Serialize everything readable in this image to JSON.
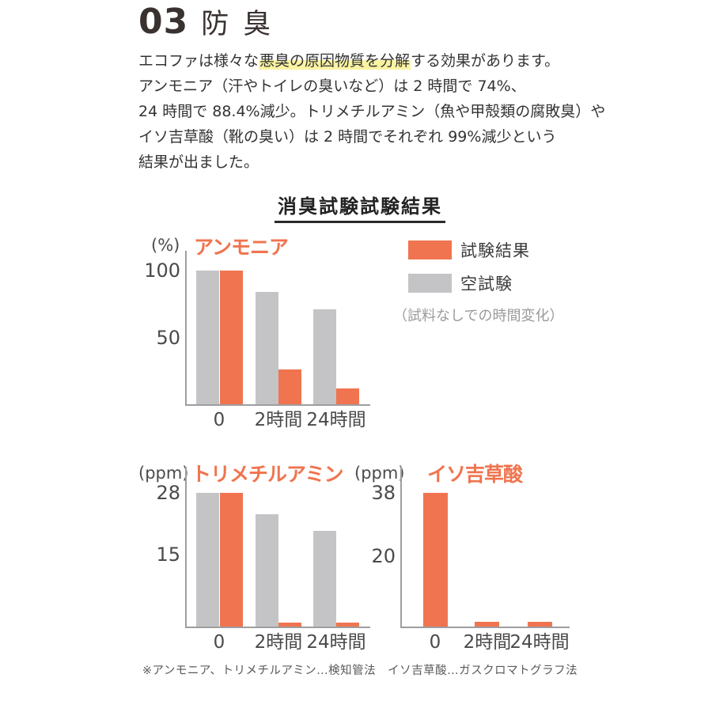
{
  "header": {
    "number": "03",
    "title": "防臭"
  },
  "intro": {
    "line1_pre": "エコファは様々な",
    "line1_highlight": "悪臭の原因物質を分解",
    "line1_post": "する効果があります。",
    "line2": "アンモニア（汗やトイレの臭いなど）は 2 時間で 74%、",
    "line3": "24 時間で 88.4%減少。トリメチルアミン（魚や甲殻類の腐敗臭）や",
    "line4": "イソ吉草酸（靴の臭い）は 2 時間でそれぞれ 99%減少という",
    "line5": "結果が出ました。"
  },
  "section": {
    "title": "消臭試験試験結果"
  },
  "legend": {
    "result_label": "試験結果",
    "blank_label": "空試験",
    "note": "（試料なしでの時間変化）"
  },
  "footnote": "※アンモニア、トリメチルアミン…検知管法　イソ吉草酸…ガスクロマトグラフ法",
  "colors": {
    "accent": "#f0744f",
    "bar_gray": "#c4c4c6",
    "highlight": "#faf3a2",
    "heading": "#3a3230"
  },
  "chart_data": [
    {
      "type": "bar",
      "title": "アンモニア",
      "unit": "(%)",
      "categories": [
        "0",
        "2時間",
        "24時間"
      ],
      "y_ticks": [
        100,
        50
      ],
      "ylim": [
        0,
        115
      ],
      "grid": false,
      "legend_position": "right",
      "series": [
        {
          "key": "blank",
          "name": "空試験",
          "color": "#c4c4c6",
          "values": [
            100,
            84,
            71
          ]
        },
        {
          "key": "result",
          "name": "試験結果",
          "color": "#f0744f",
          "values": [
            100,
            26,
            11.6
          ]
        }
      ]
    },
    {
      "type": "bar",
      "title": "トリメチルアミン",
      "unit": "(ppm)",
      "categories": [
        "0",
        "2時間",
        "24時間"
      ],
      "y_ticks": [
        28,
        15
      ],
      "ylim": [
        0,
        32
      ],
      "grid": false,
      "series": [
        {
          "key": "blank",
          "name": "空試験",
          "color": "#c4c4c6",
          "values": [
            28,
            23.5,
            20
          ]
        },
        {
          "key": "result",
          "name": "試験結果",
          "color": "#f0744f",
          "values": [
            28,
            0.8,
            0.8
          ]
        }
      ]
    },
    {
      "type": "bar",
      "title": "イソ吉草酸",
      "unit": "(ppm)",
      "categories": [
        "0",
        "2時間",
        "24時間"
      ],
      "y_ticks": [
        38,
        20
      ],
      "ylim": [
        0,
        43
      ],
      "grid": false,
      "series": [
        {
          "key": "result",
          "name": "試験結果",
          "color": "#f0744f",
          "values": [
            38,
            1.3,
            1.3
          ]
        }
      ]
    }
  ]
}
